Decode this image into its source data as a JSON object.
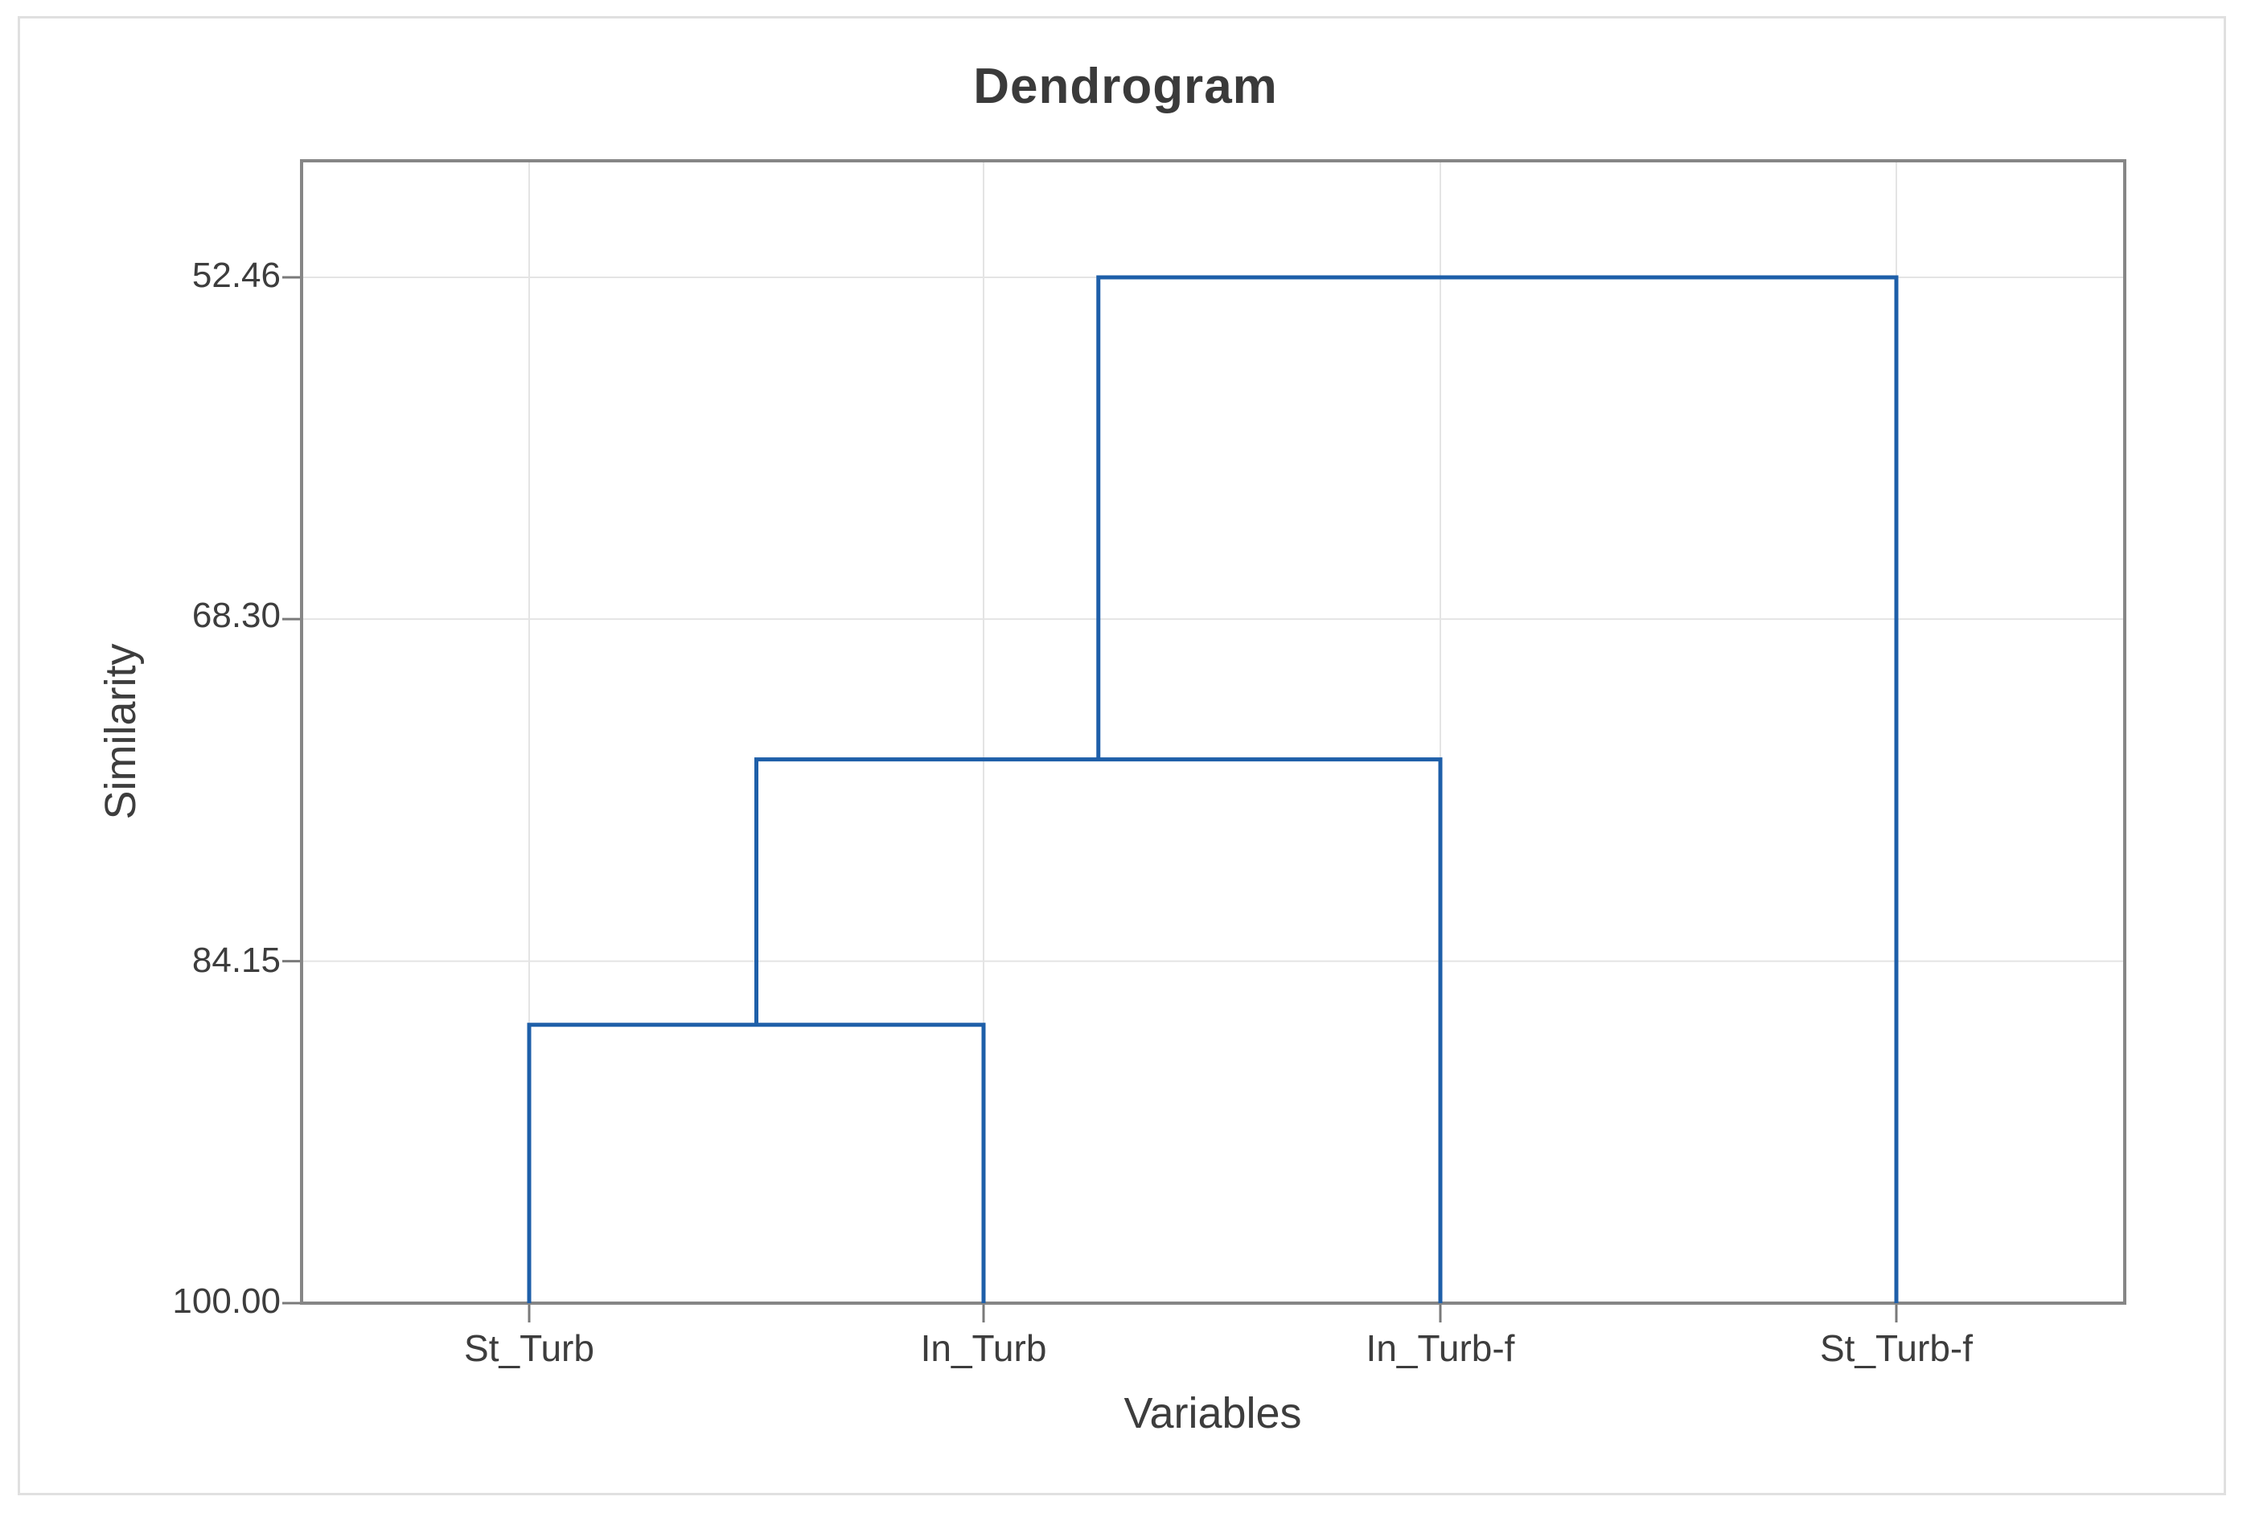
{
  "chart_data": {
    "type": "dendrogram",
    "title": "Dendrogram",
    "xlabel": "Variables",
    "ylabel": "Similarity",
    "y_axis": {
      "tick_labels": [
        "52.46",
        "68.30",
        "84.15",
        "100.00"
      ],
      "tick_values": [
        52.46,
        68.3,
        84.15,
        100.0
      ],
      "top_value": 52.46,
      "bottom_value": 100.0,
      "orientation": "similarity decreases upward"
    },
    "leaves": [
      "St_Turb",
      "In_Turb",
      "In_Turb-f",
      "St_Turb-f"
    ],
    "merges": [
      {
        "a": "L0",
        "b": "L1",
        "similarity": 87.1,
        "label": "St_Turb + In_Turb"
      },
      {
        "a": "M0",
        "b": "L2",
        "similarity": 74.8,
        "label": "(St_Turb,In_Turb) + In_Turb-f"
      },
      {
        "a": "M1",
        "b": "L3",
        "similarity": 52.46,
        "label": "(St_Turb,In_Turb,In_Turb-f) + St_Turb-f"
      }
    ],
    "grid": true,
    "legend": "none",
    "colors": {
      "line": "#1e5fa9",
      "plot_border": "#868686",
      "gridline": "#e4e4e4",
      "tick_mark": "#7a7a7a",
      "text": "#3d3d3d",
      "title_text": "#3a3a3a",
      "outer_frame": "#e0e0e0"
    }
  }
}
